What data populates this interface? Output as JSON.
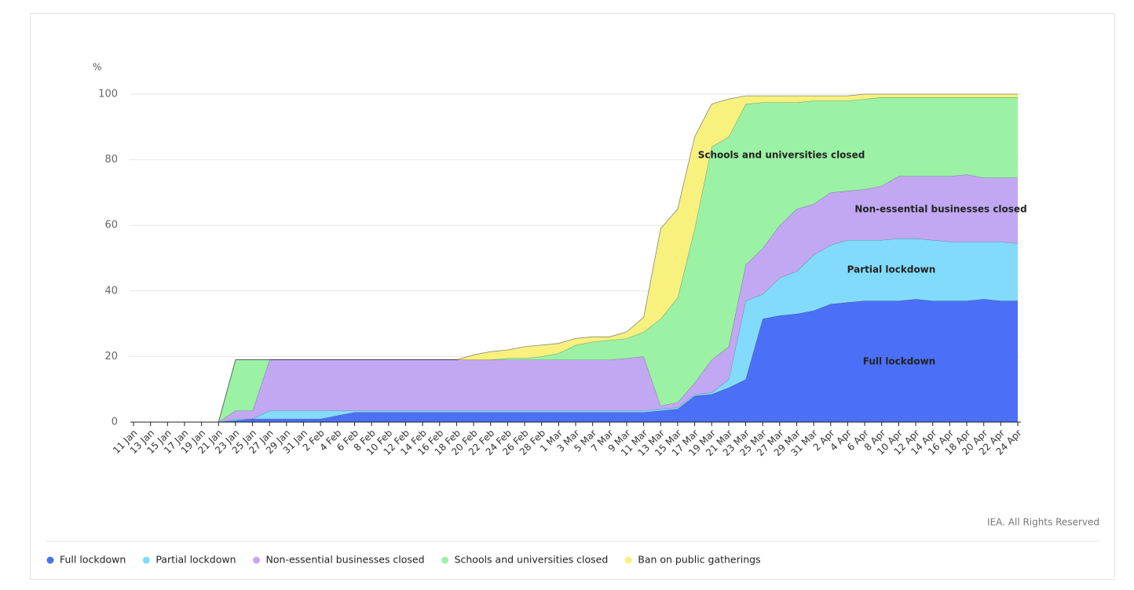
{
  "chart_data": {
    "type": "stacked-area",
    "y_axis_label": "%",
    "source": "IEA. All Rights Reserved",
    "categories": [
      "11 Jan",
      "13 Jan",
      "15 Jan",
      "17 Jan",
      "19 Jan",
      "21 Jan",
      "23 Jan",
      "25 Jan",
      "27 Jan",
      "29 Jan",
      "31 Jan",
      "2 Feb",
      "4 Feb",
      "6 Feb",
      "8 Feb",
      "10 Feb",
      "12 Feb",
      "14 Feb",
      "16 Feb",
      "18 Feb",
      "20 Feb",
      "22 Feb",
      "24 Feb",
      "26 Feb",
      "28 Feb",
      "1 Mar",
      "3 Mar",
      "5 Mar",
      "7 Mar",
      "9 Mar",
      "11 Mar",
      "13 Mar",
      "15 Mar",
      "17 Mar",
      "19 Mar",
      "21 Mar",
      "23 Mar",
      "25 Mar",
      "27 Mar",
      "29 Mar",
      "31 Mar",
      "2 Apr",
      "4 Apr",
      "6 Apr",
      "8 Apr",
      "10 Apr",
      "12 Apr",
      "14 Apr",
      "16 Apr",
      "18 Apr",
      "20 Apr",
      "22 Apr",
      "24 Apr"
    ],
    "series": [
      {
        "name": "Full lockdown",
        "color": "#4b70f7",
        "values": [
          0,
          0,
          0,
          0,
          0,
          0,
          0.5,
          1,
          1,
          1,
          1,
          1,
          2,
          3,
          3,
          3,
          3,
          3,
          3,
          3,
          3,
          3,
          3,
          3,
          3,
          3,
          3,
          3,
          3,
          3,
          3,
          3.5,
          4,
          8,
          8.5,
          10.5,
          13,
          31.5,
          32.5,
          33,
          34,
          36,
          36.5,
          37,
          37,
          37,
          37.5,
          37,
          37,
          37,
          37.5,
          37,
          37
        ]
      },
      {
        "name": "Partial lockdown",
        "color": "#82dbfa",
        "values": [
          0,
          0,
          0,
          0,
          0,
          0,
          0.5,
          0,
          2.5,
          2.5,
          2.5,
          2.5,
          1.5,
          0.5,
          0.5,
          0.5,
          0.5,
          0.5,
          0.5,
          0.5,
          0.5,
          0.5,
          0.5,
          0.5,
          0.5,
          0.5,
          0.5,
          0.5,
          0.5,
          0.5,
          0.5,
          0.5,
          0.5,
          0.5,
          0.5,
          2.5,
          24,
          7.5,
          11.5,
          13,
          17,
          18,
          19,
          18.5,
          18.5,
          19,
          18.5,
          18.5,
          18,
          18,
          17.5,
          18,
          17.5
        ]
      },
      {
        "name": "Non-essential businesses closed",
        "color": "#c2a8f2",
        "values": [
          0,
          0,
          0,
          0,
          0,
          0,
          2.5,
          2.5,
          15.5,
          15.5,
          15.5,
          15.5,
          15.5,
          15.5,
          15.5,
          15.5,
          15.5,
          15.5,
          15.5,
          15.5,
          15.5,
          15.5,
          15.5,
          15.5,
          15.5,
          15.5,
          15.5,
          15.5,
          15.5,
          16,
          16.5,
          1,
          1.5,
          3.5,
          10,
          10,
          11,
          14,
          16,
          19,
          15.5,
          16,
          15,
          15.5,
          16.5,
          19,
          19,
          19.5,
          20,
          20.5,
          19.5,
          19.5,
          20
        ]
      },
      {
        "name": "Schools and universities closed",
        "color": "#9bf2a4",
        "values": [
          0,
          0,
          0,
          0,
          0,
          0,
          15.5,
          15.5,
          0,
          0,
          0,
          0,
          0,
          0,
          0,
          0,
          0,
          0,
          0,
          0,
          0,
          0,
          0.5,
          0.5,
          1,
          2,
          4.5,
          5.5,
          6,
          6,
          7.5,
          26.5,
          32,
          47,
          65,
          64,
          49,
          44.5,
          37.5,
          32.5,
          31.5,
          28,
          27.5,
          27.5,
          27,
          24,
          24,
          24,
          24,
          23.5,
          24.5,
          24.5,
          24.5
        ]
      },
      {
        "name": "Ban on public gatherings",
        "color": "#f8f17e",
        "values": [
          0,
          0,
          0,
          0,
          0,
          0,
          0,
          0,
          0,
          0,
          0,
          0,
          0,
          0,
          0,
          0,
          0,
          0,
          0,
          0,
          1.5,
          2.5,
          2.5,
          3.5,
          3.5,
          3,
          2,
          1.5,
          1,
          2,
          4.5,
          27.5,
          27,
          28,
          13,
          11.5,
          2.5,
          2,
          2,
          2,
          1.5,
          1.5,
          1.5,
          1.5,
          1,
          1,
          1,
          1,
          1,
          1,
          1,
          1,
          1
        ]
      }
    ],
    "annotations": [
      "Schools and universities closed",
      "Non-essential businesses closed",
      "Partial lockdown",
      "Full lockdown"
    ],
    "ylim": [
      0,
      100
    ],
    "yticks": [
      0,
      20,
      40,
      60,
      80,
      100
    ],
    "grid": true
  }
}
